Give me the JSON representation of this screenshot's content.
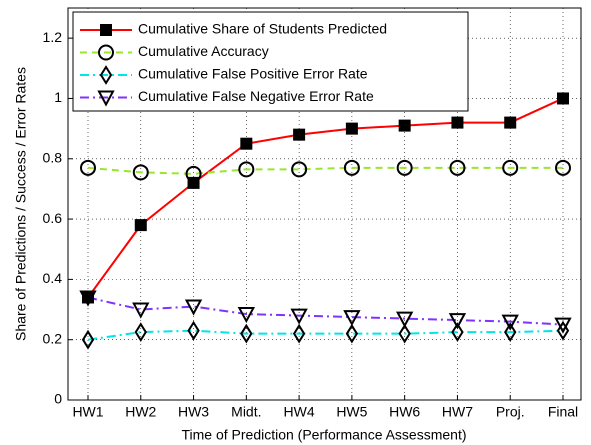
{
  "chart_data": {
    "type": "line",
    "xlabel": "Time of Prediction (Performance Assessment)",
    "ylabel": "Share of Predictions / Success / Error Rates",
    "categories": [
      "HW1",
      "HW2",
      "HW3",
      "Midt.",
      "HW4",
      "HW5",
      "HW6",
      "HW7",
      "Proj.",
      "Final"
    ],
    "series": [
      {
        "name": "Cumulative Share of Students Predicted",
        "color": "#ff0000",
        "marker": "square",
        "dash": "solid",
        "values": [
          0.34,
          0.58,
          0.72,
          0.85,
          0.88,
          0.9,
          0.91,
          0.92,
          0.92,
          1.0
        ]
      },
      {
        "name": "Cumulative Accuracy",
        "color": "#99e62e",
        "marker": "circle",
        "dash": "dashed",
        "values": [
          0.77,
          0.755,
          0.75,
          0.765,
          0.765,
          0.77,
          0.77,
          0.77,
          0.77,
          0.77
        ]
      },
      {
        "name": "Cumulative False Positive Error Rate",
        "color": "#00e5e5",
        "marker": "diamond",
        "dash": "dashdot",
        "values": [
          0.2,
          0.225,
          0.23,
          0.22,
          0.22,
          0.22,
          0.22,
          0.225,
          0.225,
          0.23
        ]
      },
      {
        "name": "Cumulative False Negative Error Rate",
        "color": "#8033ff",
        "marker": "triangle-down",
        "dash": "dashdot",
        "values": [
          0.34,
          0.3,
          0.31,
          0.285,
          0.28,
          0.275,
          0.27,
          0.265,
          0.26,
          0.25
        ]
      }
    ],
    "ylim": [
      0,
      1.3
    ],
    "yticks": [
      0,
      0.2,
      0.4,
      0.6,
      0.8,
      1,
      1.2
    ],
    "grid": true,
    "legend": "upper left"
  }
}
